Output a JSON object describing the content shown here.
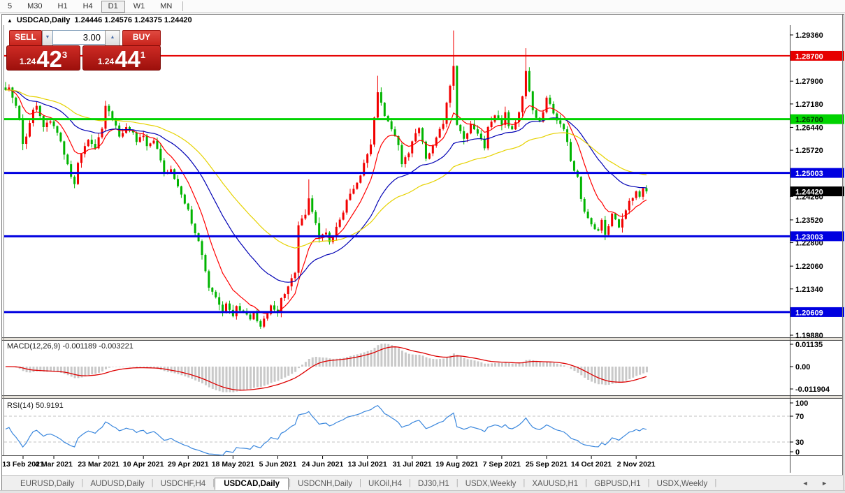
{
  "ui_icons": {
    "collapse": "▲",
    "spin_up": "▲",
    "spin_down": "▼",
    "scroll_arrows": "◄ ►"
  },
  "toolbar": {
    "timeframes": [
      "5",
      "M30",
      "H1",
      "H4",
      "D1",
      "W1",
      "MN"
    ],
    "active": "D1"
  },
  "chart_window": {
    "title": {
      "symbol": "USDCAD,Daily",
      "ohlc_text": "1.24446 1.24576 1.24375 1.24420"
    },
    "trade_panel": {
      "sell_label": "SELL",
      "buy_label": "BUY",
      "volume": "3.00",
      "sell_price": {
        "small": "1.24",
        "big": "42",
        "sup": "3"
      },
      "buy_price": {
        "small": "1.24",
        "big": "44",
        "sup": "1"
      }
    }
  },
  "chart_data": [
    {
      "type": "candlestick",
      "symbol": "USDCAD",
      "timeframe": "Daily",
      "last_ohlc": {
        "open": 1.24446,
        "high": 1.24576,
        "low": 1.24375,
        "close": 1.2442
      },
      "up_color": "#f20000",
      "down_color": "#00b400",
      "y_axis": {
        "max": 1.2936,
        "min": 1.1988,
        "ticks": [
          "1.29360",
          "1.27900",
          "1.27180",
          "1.26440",
          "1.25720",
          "1.24260",
          "1.23520",
          "1.22800",
          "1.22060",
          "1.21340",
          "1.19880"
        ]
      },
      "x_axis": {
        "labels": [
          "13 Feb 2021",
          "4 Mar 2021",
          "23 Mar 2021",
          "10 Apr 2021",
          "29 Apr 2021",
          "18 May 2021",
          "5 Jun 2021",
          "24 Jun 2021",
          "13 Jul 2021",
          "31 Jul 2021",
          "19 Aug 2021",
          "7 Sep 2021",
          "25 Sep 2021",
          "14 Oct 2021",
          "2 Nov 2021"
        ]
      },
      "levels": [
        {
          "label": "1.28700",
          "price": 1.287,
          "color": "#e60000",
          "width": 2,
          "text": "#ffffff"
        },
        {
          "label": "1.26700",
          "price": 1.267,
          "color": "#00d300",
          "width": 3,
          "text": "#003300"
        },
        {
          "label": "1.25003",
          "price": 1.25003,
          "color": "#0000e0",
          "width": 3,
          "text": "#ffffff"
        },
        {
          "label": "1.23003",
          "price": 1.23003,
          "color": "#0000e0",
          "width": 3,
          "text": "#ffffff"
        },
        {
          "label": "1.20609",
          "price": 1.20609,
          "color": "#0000e0",
          "width": 3,
          "text": "#ffffff"
        }
      ],
      "current_price": {
        "label": "1.24420",
        "price": 1.2442,
        "bg": "#000000",
        "text": "#ffffff"
      },
      "moving_averages": [
        {
          "period": 10,
          "color": "#ff0000"
        },
        {
          "period": 30,
          "color": "#0000b4"
        },
        {
          "period": 55,
          "color": "#e6d200"
        }
      ],
      "candle_count": 187,
      "close_keypoints": [
        [
          0,
          1.2762
        ],
        [
          1,
          1.277
        ],
        [
          2,
          1.2738
        ],
        [
          3,
          1.2712
        ],
        [
          4,
          1.2668
        ],
        [
          5,
          1.2592
        ],
        [
          6,
          1.2615
        ],
        [
          7,
          1.2658
        ],
        [
          8,
          1.27
        ],
        [
          9,
          1.2712
        ],
        [
          10,
          1.268
        ],
        [
          11,
          1.2645
        ],
        [
          13,
          1.2663
        ],
        [
          14,
          1.2648
        ],
        [
          16,
          1.26
        ],
        [
          17,
          1.2558
        ],
        [
          19,
          1.2488
        ],
        [
          20,
          1.2465
        ],
        [
          21,
          1.2532
        ],
        [
          23,
          1.2585
        ],
        [
          24,
          1.2605
        ],
        [
          26,
          1.2578
        ],
        [
          28,
          1.264
        ],
        [
          29,
          1.2712
        ],
        [
          30,
          1.2695
        ],
        [
          32,
          1.265
        ],
        [
          33,
          1.2615
        ],
        [
          35,
          1.2645
        ],
        [
          37,
          1.2628
        ],
        [
          38,
          1.2598
        ],
        [
          40,
          1.2618
        ],
        [
          41,
          1.2585
        ],
        [
          43,
          1.2602
        ],
        [
          45,
          1.254
        ],
        [
          46,
          1.2498
        ],
        [
          48,
          1.2512
        ],
        [
          50,
          1.2458
        ],
        [
          51,
          1.2432
        ],
        [
          53,
          1.2385
        ],
        [
          54,
          1.234
        ],
        [
          56,
          1.2285
        ],
        [
          58,
          1.219
        ],
        [
          59,
          1.2138
        ],
        [
          61,
          1.2108
        ],
        [
          63,
          1.2062
        ],
        [
          64,
          1.2088
        ],
        [
          66,
          1.2048
        ],
        [
          67,
          1.208
        ],
        [
          69,
          1.2062
        ],
        [
          71,
          1.2038
        ],
        [
          72,
          1.206
        ],
        [
          74,
          1.2015
        ],
        [
          76,
          1.2055
        ],
        [
          77,
          1.2082
        ],
        [
          79,
          1.206
        ],
        [
          80,
          1.2105
        ],
        [
          82,
          1.2142
        ],
        [
          84,
          1.2185
        ],
        [
          85,
          1.2335
        ],
        [
          87,
          1.2368
        ],
        [
          88,
          1.242
        ],
        [
          90,
          1.2342
        ],
        [
          91,
          1.2295
        ],
        [
          93,
          1.2312
        ],
        [
          94,
          1.2282
        ],
        [
          95,
          1.2298
        ],
        [
          96,
          1.233
        ],
        [
          98,
          1.2375
        ],
        [
          99,
          1.2415
        ],
        [
          101,
          1.245
        ],
        [
          103,
          1.2492
        ],
        [
          104,
          1.2532
        ],
        [
          106,
          1.259
        ],
        [
          108,
          1.2755
        ],
        [
          109,
          1.2722
        ],
        [
          110,
          1.268
        ],
        [
          112,
          1.2638
        ],
        [
          114,
          1.2588
        ],
        [
          115,
          1.2528
        ],
        [
          117,
          1.2562
        ],
        [
          118,
          1.26
        ],
        [
          120,
          1.2642
        ],
        [
          122,
          1.2545
        ],
        [
          123,
          1.2562
        ],
        [
          125,
          1.2612
        ],
        [
          127,
          1.2655
        ],
        [
          128,
          1.2722
        ],
        [
          130,
          1.2838
        ],
        [
          131,
          1.2652
        ],
        [
          133,
          1.2608
        ],
        [
          134,
          1.2625
        ],
        [
          135,
          1.2655
        ],
        [
          136,
          1.2638
        ],
        [
          138,
          1.2608
        ],
        [
          139,
          1.2578
        ],
        [
          140,
          1.2645
        ],
        [
          141,
          1.2662
        ],
        [
          142,
          1.2682
        ],
        [
          144,
          1.2652
        ],
        [
          145,
          1.2692
        ],
        [
          146,
          1.2648
        ],
        [
          147,
          1.2638
        ],
        [
          149,
          1.2692
        ],
        [
          150,
          1.2742
        ],
        [
          151,
          1.2822
        ],
        [
          152,
          1.2758
        ],
        [
          153,
          1.2698
        ],
        [
          155,
          1.2662
        ],
        [
          156,
          1.2692
        ],
        [
          157,
          1.2738
        ],
        [
          158,
          1.2718
        ],
        [
          159,
          1.2688
        ],
        [
          161,
          1.2655
        ],
        [
          162,
          1.2638
        ],
        [
          163,
          1.2598
        ],
        [
          164,
          1.2538
        ],
        [
          166,
          1.2488
        ],
        [
          167,
          1.2418
        ],
        [
          168,
          1.2378
        ],
        [
          169,
          1.2358
        ],
        [
          170,
          1.2338
        ],
        [
          172,
          1.2318
        ],
        [
          173,
          1.2352
        ],
        [
          174,
          1.2305
        ],
        [
          175,
          1.2332
        ],
        [
          176,
          1.2372
        ],
        [
          178,
          1.2328
        ],
        [
          179,
          1.2355
        ],
        [
          180,
          1.2382
        ],
        [
          181,
          1.2412
        ],
        [
          183,
          1.2442
        ],
        [
          184,
          1.2425
        ],
        [
          185,
          1.2452
        ],
        [
          186,
          1.2442
        ]
      ],
      "wick_overrides": {
        "5": {
          "l": 1.2572
        },
        "20": {
          "l": 1.2452
        },
        "29": {
          "h": 1.2728
        },
        "74": {
          "l": 1.2008
        },
        "88": {
          "h": 1.248
        },
        "108": {
          "h": 1.2807
        },
        "130": {
          "h": 1.295
        },
        "151": {
          "h": 1.2894
        },
        "174": {
          "l": 1.2288
        }
      }
    },
    {
      "type": "macd_histogram",
      "label": "MACD(12,26,9)",
      "params": [
        12,
        26,
        9
      ],
      "macd_value": "-0.001189",
      "signal_value": "-0.003221",
      "y_ticks": [
        "0.01135",
        "0.00",
        "-0.011904"
      ],
      "histogram_color": "#c9c9c9",
      "signal_color": "#dd0000"
    },
    {
      "type": "line",
      "label": "RSI(14)",
      "period": 14,
      "value": "50.9191",
      "overbought": 70,
      "oversold": 30,
      "y_ticks": [
        "100",
        "70",
        "30",
        "0"
      ],
      "color": "#3a87dd",
      "level_color": "#c0c0c0"
    }
  ],
  "tabs": {
    "items": [
      "EURUSD,Daily",
      "AUDUSD,Daily",
      "USDCHF,H4",
      "USDCAD,Daily",
      "USDCNH,Daily",
      "UKOil,H4",
      "DJ30,H1",
      "USDX,Weekly",
      "XAUUSD,H1",
      "GBPUSD,H1",
      "USDX,Weekly"
    ],
    "active_index": 3
  }
}
